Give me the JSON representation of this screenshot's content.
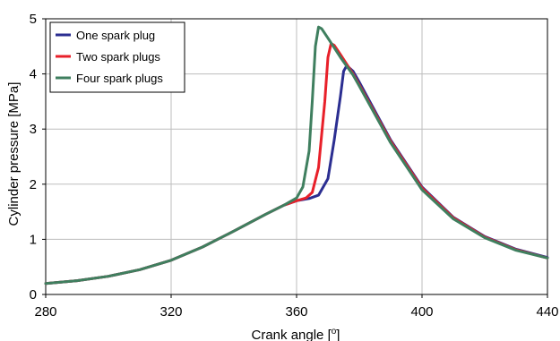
{
  "chart_data": {
    "type": "line",
    "xlabel": "Crank angle [",
    "xlabel_unit_sup": "o",
    "xlabel_close": "]",
    "ylabel": "Cylinder pressure [MPa]",
    "xlim": [
      280,
      440
    ],
    "ylim": [
      0,
      5
    ],
    "x_ticks": [
      "280",
      "320",
      "360",
      "400",
      "440"
    ],
    "y_ticks": [
      "0",
      "1",
      "2",
      "3",
      "4",
      "5"
    ],
    "grid": true,
    "legend_position": "top-left",
    "series": [
      {
        "name": "One spark plug",
        "color": "#2b2e91",
        "points": [
          [
            280,
            0.2
          ],
          [
            290,
            0.25
          ],
          [
            300,
            0.33
          ],
          [
            310,
            0.45
          ],
          [
            320,
            0.62
          ],
          [
            330,
            0.86
          ],
          [
            340,
            1.15
          ],
          [
            350,
            1.45
          ],
          [
            356,
            1.62
          ],
          [
            360,
            1.7
          ],
          [
            364,
            1.74
          ],
          [
            367,
            1.8
          ],
          [
            370,
            2.1
          ],
          [
            372,
            2.8
          ],
          [
            374,
            3.6
          ],
          [
            375,
            4.05
          ],
          [
            376,
            4.15
          ],
          [
            378,
            4.05
          ],
          [
            380,
            3.85
          ],
          [
            390,
            2.8
          ],
          [
            400,
            1.95
          ],
          [
            410,
            1.4
          ],
          [
            420,
            1.05
          ],
          [
            430,
            0.82
          ],
          [
            440,
            0.67
          ]
        ]
      },
      {
        "name": "Two spark plugs",
        "color": "#e8202a",
        "points": [
          [
            280,
            0.2
          ],
          [
            290,
            0.25
          ],
          [
            300,
            0.33
          ],
          [
            310,
            0.45
          ],
          [
            320,
            0.62
          ],
          [
            330,
            0.86
          ],
          [
            340,
            1.15
          ],
          [
            350,
            1.45
          ],
          [
            356,
            1.62
          ],
          [
            360,
            1.7
          ],
          [
            363,
            1.75
          ],
          [
            365,
            1.85
          ],
          [
            367,
            2.3
          ],
          [
            369,
            3.5
          ],
          [
            370,
            4.3
          ],
          [
            371,
            4.55
          ],
          [
            372,
            4.52
          ],
          [
            374,
            4.35
          ],
          [
            378,
            4.0
          ],
          [
            380,
            3.8
          ],
          [
            390,
            2.78
          ],
          [
            400,
            1.93
          ],
          [
            410,
            1.39
          ],
          [
            420,
            1.04
          ],
          [
            430,
            0.81
          ],
          [
            440,
            0.66
          ]
        ]
      },
      {
        "name": "Four spark plugs",
        "color": "#3f7f5f",
        "points": [
          [
            280,
            0.2
          ],
          [
            290,
            0.25
          ],
          [
            300,
            0.33
          ],
          [
            310,
            0.45
          ],
          [
            320,
            0.62
          ],
          [
            330,
            0.86
          ],
          [
            340,
            1.15
          ],
          [
            350,
            1.45
          ],
          [
            356,
            1.62
          ],
          [
            360,
            1.75
          ],
          [
            362,
            1.95
          ],
          [
            364,
            2.6
          ],
          [
            365,
            3.5
          ],
          [
            366,
            4.5
          ],
          [
            367,
            4.85
          ],
          [
            368,
            4.82
          ],
          [
            370,
            4.65
          ],
          [
            374,
            4.3
          ],
          [
            378,
            3.98
          ],
          [
            380,
            3.78
          ],
          [
            390,
            2.75
          ],
          [
            400,
            1.9
          ],
          [
            410,
            1.37
          ],
          [
            420,
            1.03
          ],
          [
            430,
            0.8
          ],
          [
            440,
            0.66
          ]
        ]
      }
    ]
  }
}
